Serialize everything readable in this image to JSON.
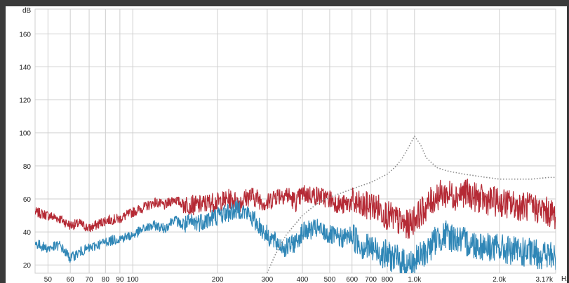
{
  "chart_data": {
    "type": "line",
    "ylabel": "dB",
    "xlabel": "Hz",
    "x_scale": "log",
    "xlim": [
      45,
      3170
    ],
    "ylim": [
      15,
      175
    ],
    "x_ticks": [
      {
        "v": 50,
        "label": "50"
      },
      {
        "v": 60,
        "label": "60"
      },
      {
        "v": 70,
        "label": "70"
      },
      {
        "v": 80,
        "label": "80"
      },
      {
        "v": 90,
        "label": "90"
      },
      {
        "v": 100,
        "label": "100"
      },
      {
        "v": 200,
        "label": "200"
      },
      {
        "v": 300,
        "label": "300"
      },
      {
        "v": 400,
        "label": "400"
      },
      {
        "v": 500,
        "label": "500"
      },
      {
        "v": 600,
        "label": "600"
      },
      {
        "v": 700,
        "label": "700"
      },
      {
        "v": 800,
        "label": "800"
      },
      {
        "v": 1000,
        "label": "1.0k"
      },
      {
        "v": 2000,
        "label": "2.0k"
      },
      {
        "v": 3170,
        "label": "3.17k"
      }
    ],
    "y_ticks": [
      20,
      40,
      60,
      80,
      100,
      120,
      140,
      160
    ],
    "grid": true,
    "colors": {
      "red": "#b52a35",
      "blue": "#2f86b6",
      "dotted": "#888888",
      "grid": "#cfcfcf"
    },
    "series": [
      {
        "color": "#b52a35",
        "style": "solid",
        "x": [
          45,
          50,
          55,
          60,
          65,
          70,
          80,
          90,
          100,
          110,
          120,
          130,
          140,
          150,
          170,
          190,
          200,
          220,
          240,
          260,
          280,
          300,
          320,
          350,
          380,
          400,
          450,
          500,
          550,
          600,
          650,
          700,
          750,
          800,
          850,
          900,
          950,
          1000,
          1100,
          1200,
          1300,
          1400,
          1500,
          1700,
          2000,
          2300,
          2600,
          3000,
          3170
        ],
        "y": [
          52,
          50,
          48,
          44,
          45,
          42,
          47,
          48,
          52,
          55,
          58,
          56,
          60,
          57,
          56,
          58,
          58,
          60,
          58,
          62,
          60,
          57,
          62,
          63,
          58,
          63,
          62,
          60,
          56,
          58,
          55,
          56,
          54,
          50,
          48,
          45,
          44,
          48,
          55,
          62,
          63,
          62,
          64,
          60,
          58,
          56,
          55,
          52,
          50
        ]
      },
      {
        "color": "#2f86b6",
        "style": "solid",
        "x": [
          45,
          50,
          55,
          60,
          65,
          70,
          80,
          90,
          100,
          110,
          120,
          130,
          140,
          150,
          170,
          190,
          200,
          220,
          240,
          260,
          280,
          300,
          320,
          350,
          380,
          400,
          450,
          500,
          550,
          600,
          650,
          700,
          750,
          800,
          850,
          900,
          950,
          1000,
          1100,
          1200,
          1300,
          1400,
          1500,
          1700,
          2000,
          2300,
          2600,
          3000,
          3170
        ],
        "y": [
          33,
          30,
          32,
          24,
          28,
          30,
          34,
          36,
          38,
          42,
          44,
          42,
          48,
          44,
          46,
          48,
          50,
          52,
          54,
          50,
          44,
          38,
          34,
          30,
          34,
          40,
          42,
          38,
          36,
          38,
          32,
          30,
          28,
          26,
          24,
          22,
          20,
          22,
          28,
          36,
          38,
          36,
          34,
          32,
          30,
          28,
          27,
          26,
          24
        ]
      },
      {
        "color": "#888888",
        "style": "dotted",
        "x": [
          300,
          320,
          350,
          400,
          450,
          500,
          600,
          700,
          800,
          850,
          900,
          950,
          1000,
          1050,
          1100,
          1200,
          1300,
          1500,
          1800,
          2000,
          2300,
          2600,
          3000,
          3170
        ],
        "y": [
          15,
          26,
          38,
          50,
          57,
          61,
          66,
          70,
          75,
          79,
          84,
          91,
          98,
          93,
          85,
          79,
          77,
          75,
          73,
          72,
          72,
          72,
          73,
          73
        ]
      }
    ]
  }
}
